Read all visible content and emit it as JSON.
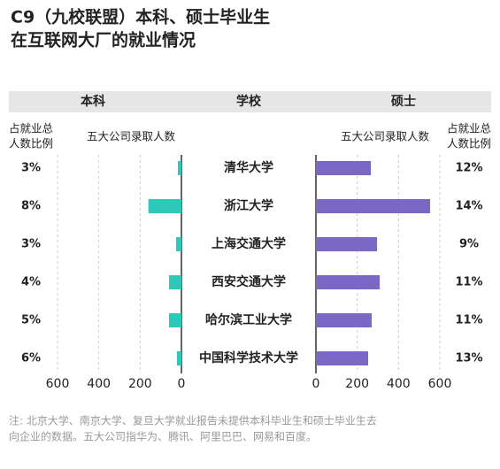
{
  "chart_data": {
    "type": "butterfly",
    "title": [
      "C9（九校联盟）本科、硕士毕业生",
      "在互联网大厂的就业情况"
    ],
    "category_label": "学校",
    "value_label": "五大公司录取人数",
    "share_label": [
      "占就业总",
      "人数比例"
    ],
    "categories": [
      "清华大学",
      "浙江大学",
      "上海交通大学",
      "西安交通大学",
      "哈尔滨工业大学",
      "中国科学技术大学"
    ],
    "series": [
      {
        "name": "本科",
        "color": "#2ec8b8",
        "values": [
          17,
          160,
          26,
          60,
          60,
          22
        ],
        "share": [
          3,
          8,
          3,
          4,
          5,
          6
        ],
        "share_labels": [
          "3%",
          "8%",
          "3%",
          "4%",
          "5%",
          "6%"
        ]
      },
      {
        "name": "硕士",
        "color": "#7b68c4",
        "values": [
          266,
          553,
          296,
          309,
          270,
          253
        ],
        "share": [
          12,
          14,
          9,
          11,
          11,
          13
        ],
        "share_labels": [
          "12%",
          "14%",
          "9%",
          "11%",
          "11%",
          "13%"
        ]
      }
    ],
    "xlim": [
      0,
      600
    ],
    "xticks": [
      0,
      200,
      400,
      600
    ],
    "grid": true,
    "note": [
      "注: 北京大学、南京大学、复旦大学就业报告未提供本科毕业生和硕士毕业生去",
      "向企业的数据。五大公司指华为、腾讯、阿里巴巴、网易和百度。"
    ]
  }
}
